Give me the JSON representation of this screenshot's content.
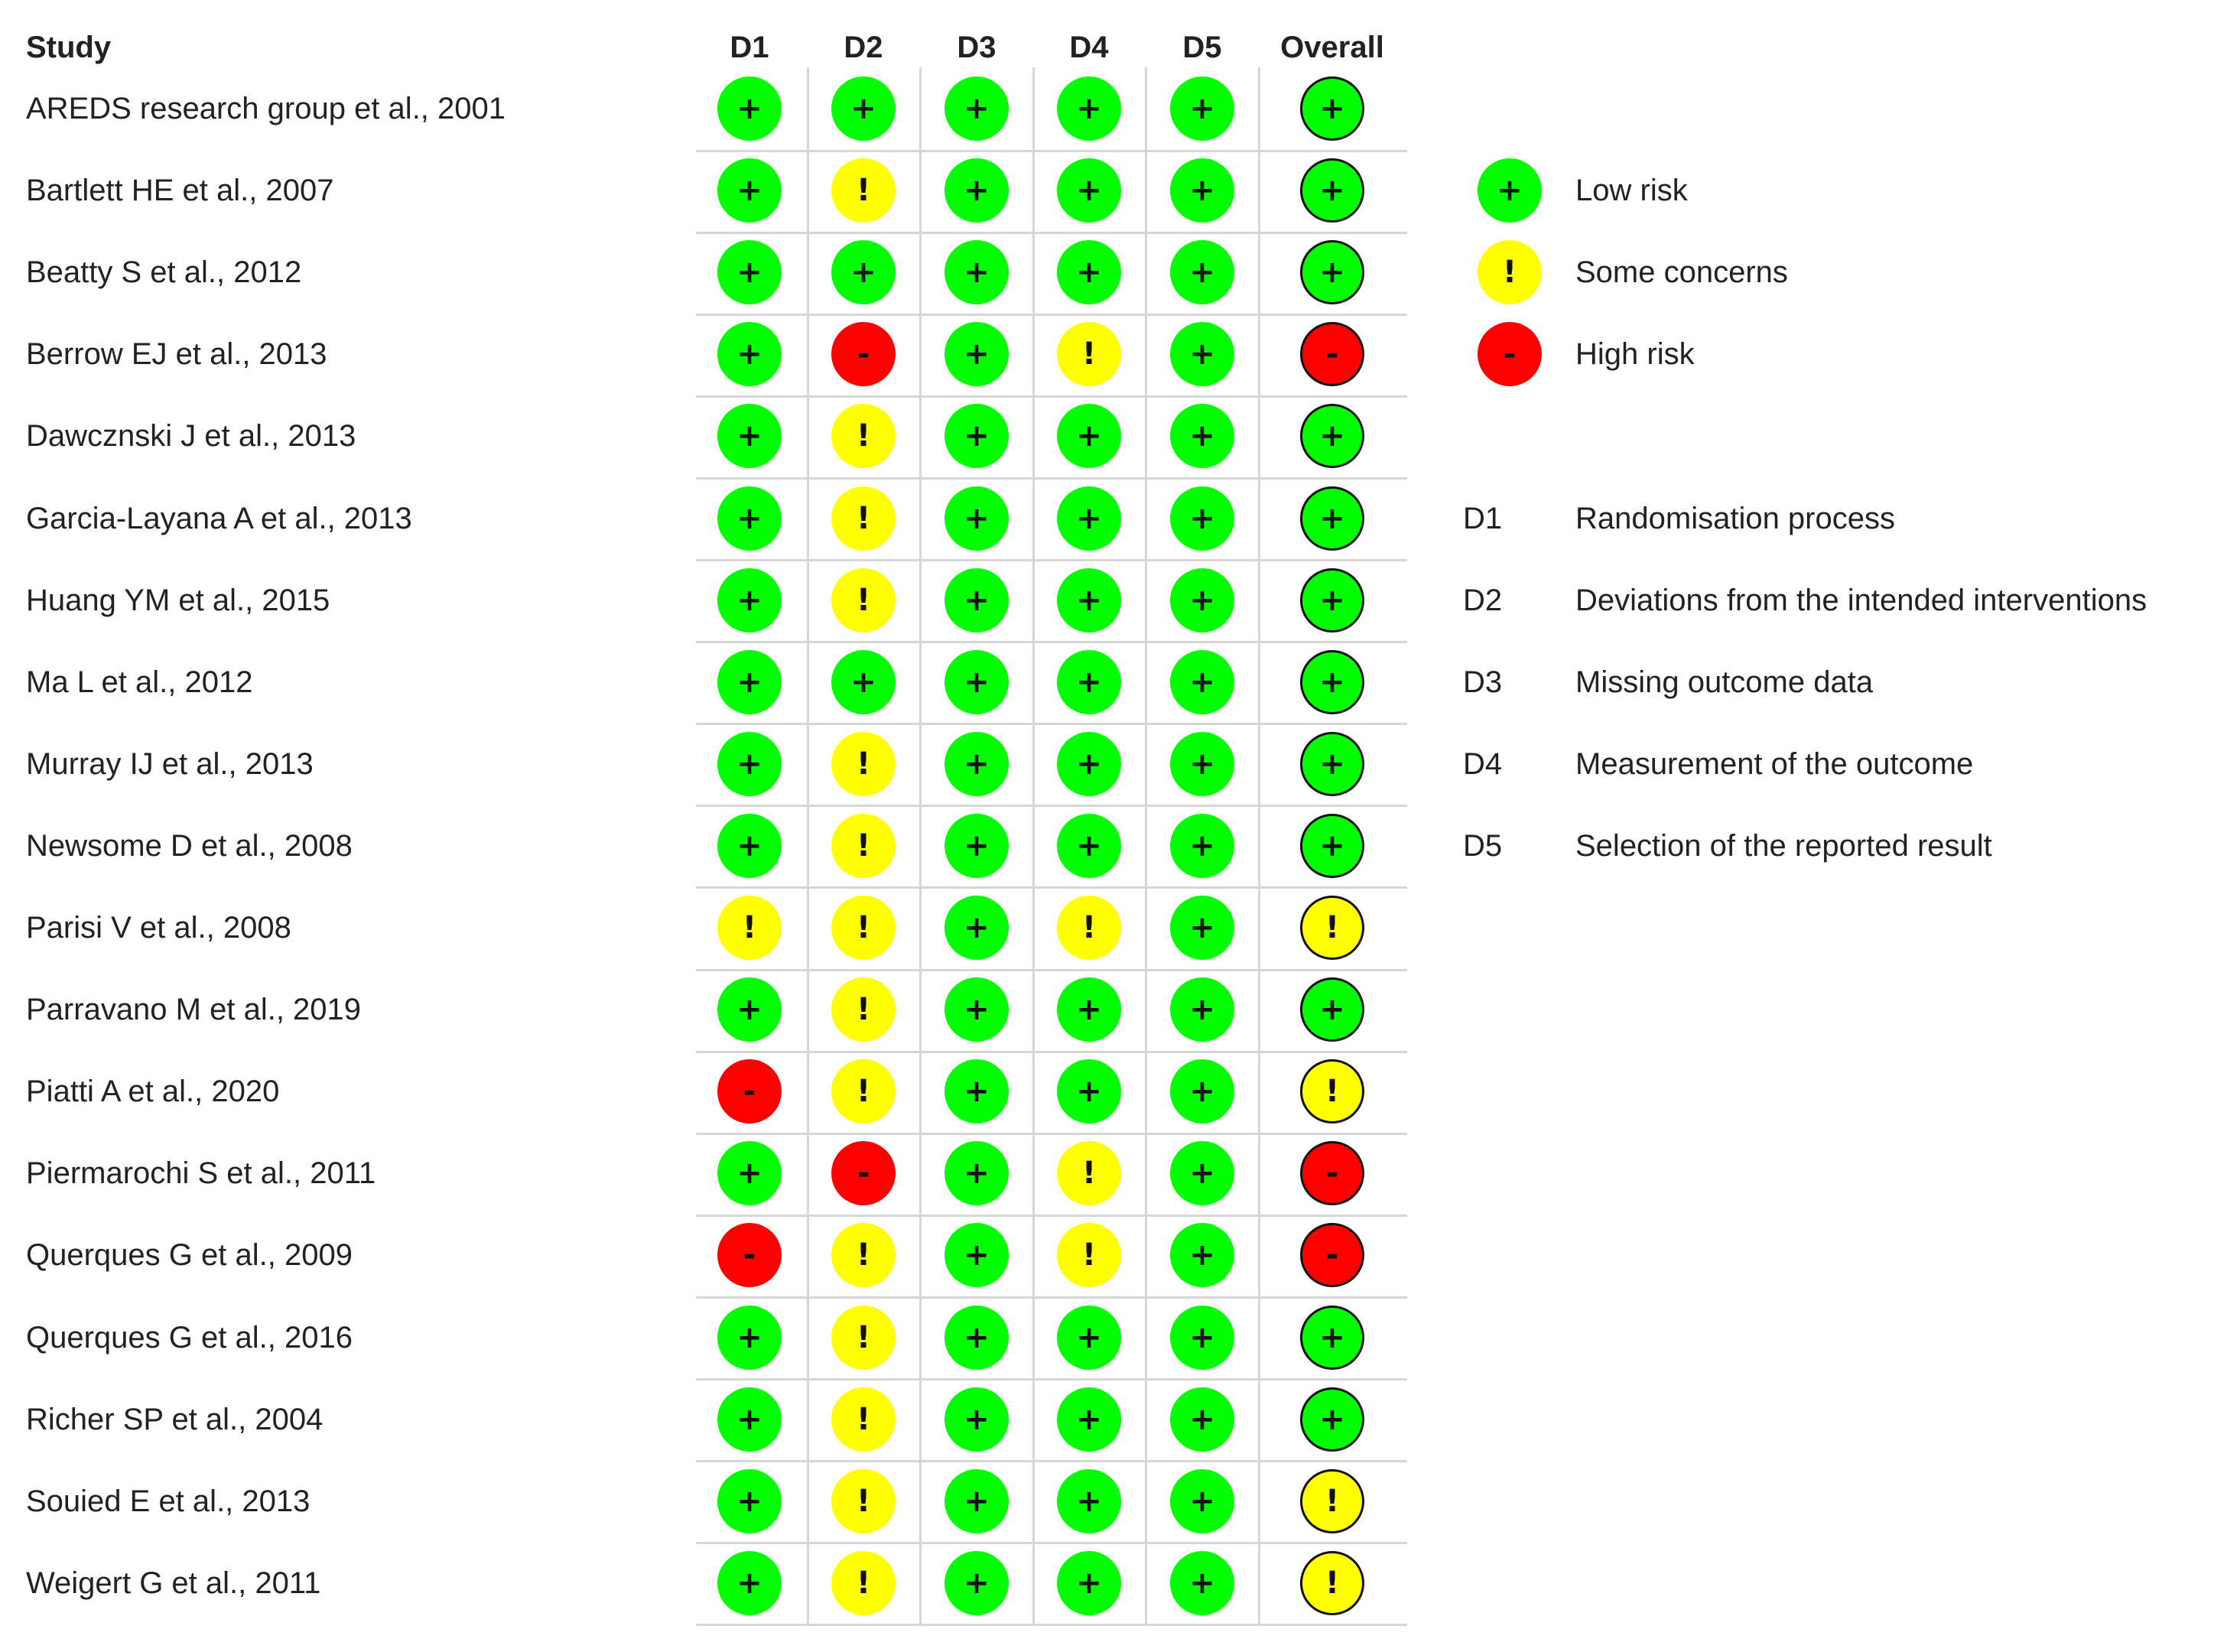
{
  "header": {
    "study": "Study",
    "domains": [
      "D1",
      "D2",
      "D3",
      "D4",
      "D5",
      "Overall"
    ]
  },
  "judgements": {
    "low": {
      "symbol": "+",
      "color": "#00ff00"
    },
    "some": {
      "symbol": "!",
      "color": "#ffff00"
    },
    "high": {
      "symbol": "-",
      "color": "#ff0000"
    }
  },
  "studies": [
    {
      "name": "AREDS research group et al., 2001",
      "ratings": [
        "low",
        "low",
        "low",
        "low",
        "low",
        "low"
      ]
    },
    {
      "name": "Bartlett HE et al., 2007",
      "ratings": [
        "low",
        "some",
        "low",
        "low",
        "low",
        "low"
      ]
    },
    {
      "name": "Beatty S et al., 2012",
      "ratings": [
        "low",
        "low",
        "low",
        "low",
        "low",
        "low"
      ]
    },
    {
      "name": "Berrow EJ et al., 2013",
      "ratings": [
        "low",
        "high",
        "low",
        "some",
        "low",
        "high"
      ]
    },
    {
      "name": "Dawcznski J et al., 2013",
      "ratings": [
        "low",
        "some",
        "low",
        "low",
        "low",
        "low"
      ]
    },
    {
      "name": "Garcia-Layana A et al., 2013",
      "ratings": [
        "low",
        "some",
        "low",
        "low",
        "low",
        "low"
      ]
    },
    {
      "name": "Huang YM  et al., 2015",
      "ratings": [
        "low",
        "some",
        "low",
        "low",
        "low",
        "low"
      ]
    },
    {
      "name": "Ma L et al., 2012",
      "ratings": [
        "low",
        "low",
        "low",
        "low",
        "low",
        "low"
      ]
    },
    {
      "name": "Murray IJ et al., 2013",
      "ratings": [
        "low",
        "some",
        "low",
        "low",
        "low",
        "low"
      ]
    },
    {
      "name": "Newsome D et al., 2008",
      "ratings": [
        "low",
        "some",
        "low",
        "low",
        "low",
        "low"
      ]
    },
    {
      "name": "Parisi V et al., 2008",
      "ratings": [
        "some",
        "some",
        "low",
        "some",
        "low",
        "some"
      ]
    },
    {
      "name": "Parravano M et al., 2019",
      "ratings": [
        "low",
        "some",
        "low",
        "low",
        "low",
        "low"
      ]
    },
    {
      "name": "Piatti A et al., 2020",
      "ratings": [
        "high",
        "some",
        "low",
        "low",
        "low",
        "some"
      ]
    },
    {
      "name": "Piermarochi S et al., 2011",
      "ratings": [
        "low",
        "high",
        "low",
        "some",
        "low",
        "high"
      ]
    },
    {
      "name": "Querques G et al., 2009",
      "ratings": [
        "high",
        "some",
        "low",
        "some",
        "low",
        "high"
      ]
    },
    {
      "name": "Querques G et al., 2016",
      "ratings": [
        "low",
        "some",
        "low",
        "low",
        "low",
        "low"
      ]
    },
    {
      "name": "Richer SP et al., 2004",
      "ratings": [
        "low",
        "some",
        "low",
        "low",
        "low",
        "low"
      ]
    },
    {
      "name": "Souied E et al., 2013",
      "ratings": [
        "low",
        "some",
        "low",
        "low",
        "low",
        "some"
      ]
    },
    {
      "name": "Weigert G et al., 2011",
      "ratings": [
        "low",
        "some",
        "low",
        "low",
        "low",
        "some"
      ]
    }
  ],
  "legend": {
    "judgements": [
      {
        "key": "low",
        "symbol": "+",
        "label": "Low risk",
        "color": "#00ff00"
      },
      {
        "key": "some",
        "symbol": "!",
        "label": "Some concerns",
        "color": "#ffff00"
      },
      {
        "key": "high",
        "symbol": "-",
        "label": "High risk",
        "color": "#ff0000"
      }
    ],
    "domains": [
      {
        "code": "D1",
        "label": "Randomisation process"
      },
      {
        "code": "D2",
        "label": "Deviations from the intended interventions"
      },
      {
        "code": "D3",
        "label": "Missing outcome data"
      },
      {
        "code": "D4",
        "label": "Measurement of the outcome"
      },
      {
        "code": "D5",
        "label": "Selection of the reported result"
      }
    ]
  }
}
